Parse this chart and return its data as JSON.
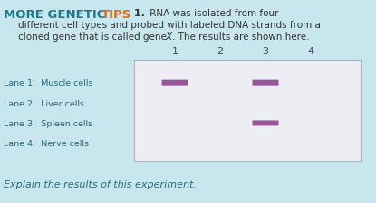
{
  "bg_color": "#c8e6ed",
  "color_teal": "#1a7a8a",
  "color_orange": "#e06818",
  "color_dark": "#333333",
  "color_label": "#2a6a7a",
  "band_color": "#8b4090",
  "gel_face": "#ededf4",
  "gel_edge": "#b0b0b8",
  "lane_numbers": [
    "1",
    "2",
    "3",
    "4"
  ],
  "lane_labels": [
    "Lane 1:  Muscle cells",
    "Lane 2:  Liver cells",
    "Lane 3:  Spleen cells",
    "Lane 4:  Nerve cells"
  ],
  "bottom_text": "Explain the results of this experiment."
}
